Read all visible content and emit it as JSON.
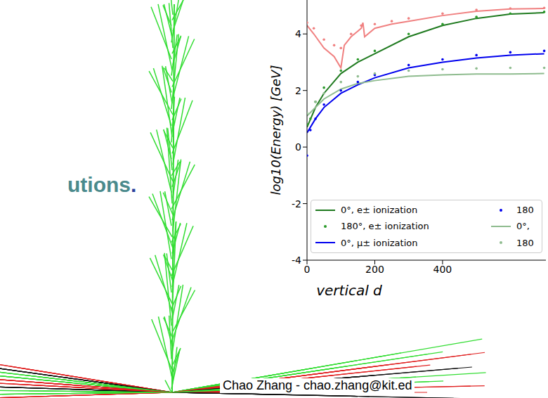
{
  "slide": {
    "text": "utions.",
    "footer": "Chao Zhang - chao.zhang@kit.ed"
  },
  "chart_data": {
    "type": "line",
    "y_label": "log10(Energy) [GeV]",
    "x_label": "vertical d",
    "xlim": [
      0,
      705
    ],
    "xticks": [
      0,
      200,
      400
    ],
    "ylim": [
      -4,
      5.2
    ],
    "yticks": [
      -4,
      -2,
      0,
      2,
      4
    ],
    "legend": "lower left",
    "series": [
      {
        "name": "0°, e± ionization",
        "color": "#1f7a1f",
        "line_style": "solid",
        "x": [
          0,
          25,
          50,
          100,
          150,
          200,
          300,
          400,
          500,
          600,
          700
        ],
        "values": [
          0.7,
          1.4,
          1.9,
          2.6,
          3.0,
          3.3,
          3.9,
          4.3,
          4.55,
          4.7,
          4.75
        ]
      },
      {
        "name": "180°, e± ionization",
        "color": "#2a9a2a",
        "marker": "dot",
        "x": [
          0,
          10,
          25,
          50,
          100,
          150,
          200,
          300,
          400,
          500,
          600,
          700
        ],
        "values": [
          0.8,
          1.0,
          1.6,
          2.1,
          2.7,
          3.1,
          3.4,
          4.0,
          4.35,
          4.6,
          4.72,
          4.78
        ]
      },
      {
        "name": "0°, μ± ionization",
        "color": "#0000ee",
        "line_style": "solid",
        "x": [
          0,
          25,
          50,
          100,
          150,
          200,
          300,
          400,
          500,
          600,
          700
        ],
        "values": [
          0.5,
          1.0,
          1.4,
          1.9,
          2.2,
          2.45,
          2.8,
          3.0,
          3.15,
          3.25,
          3.3
        ]
      },
      {
        "name": "180",
        "color": "#0000ee",
        "marker": "dot",
        "x": [
          0,
          10,
          25,
          50,
          100,
          150,
          200,
          300,
          400,
          500,
          600,
          700
        ],
        "values": [
          -0.3,
          0.6,
          1.0,
          1.5,
          2.0,
          2.3,
          2.55,
          2.9,
          3.1,
          3.25,
          3.35,
          3.4
        ]
      },
      {
        "name": "0°,",
        "color": "#8fbc8f",
        "line_style": "solid",
        "x": [
          0,
          25,
          50,
          100,
          150,
          200,
          300,
          400,
          500,
          600,
          700
        ],
        "values": [
          1.1,
          1.4,
          1.7,
          2.05,
          2.25,
          2.35,
          2.5,
          2.55,
          2.58,
          2.58,
          2.6
        ]
      },
      {
        "name": "180",
        "color": "#8fbc8f",
        "marker": "dot",
        "x": [
          0,
          25,
          50,
          100,
          150,
          200,
          300,
          400,
          500,
          600,
          700
        ],
        "values": [
          1.2,
          1.6,
          1.9,
          2.3,
          2.5,
          2.6,
          2.7,
          2.75,
          2.78,
          2.8,
          2.8
        ]
      },
      {
        "color": "#f08080",
        "line_style": "solid",
        "x": [
          0,
          20,
          50,
          80,
          100,
          110,
          130,
          160,
          165,
          170,
          200,
          250,
          300,
          400,
          500,
          600,
          700
        ],
        "values": [
          4.3,
          4.0,
          3.5,
          3.2,
          2.8,
          3.6,
          3.9,
          4.2,
          4.4,
          3.9,
          4.2,
          4.35,
          4.45,
          4.65,
          4.8,
          4.88,
          4.9
        ]
      },
      {
        "color": "#f08080",
        "marker": "dot",
        "x": [
          0,
          20,
          50,
          80,
          100,
          130,
          160,
          200,
          250,
          300,
          400,
          500,
          600,
          700
        ],
        "values": [
          4.4,
          4.2,
          3.8,
          3.6,
          3.5,
          4.0,
          4.3,
          4.35,
          4.45,
          4.55,
          4.72,
          4.85,
          4.9,
          4.92
        ]
      }
    ]
  }
}
